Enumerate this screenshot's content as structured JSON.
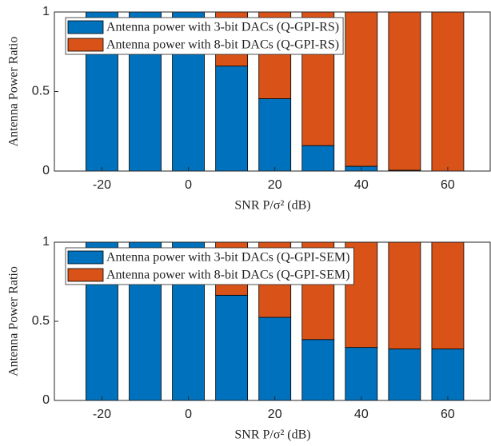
{
  "chart_data": [
    {
      "type": "bar",
      "stacked": true,
      "x": [
        -20,
        -10,
        0,
        10,
        20,
        30,
        40,
        50,
        60
      ],
      "series": [
        {
          "name": "Antenna power with 3-bit DACs (Q-GPI-RS)",
          "color": "#0072bd",
          "values": [
            1,
            1,
            1,
            0.66,
            0.455,
            0.16,
            0.03,
            0.005,
            0
          ]
        },
        {
          "name": "Antenna power with 8-bit DACs (Q-GPI-RS)",
          "color": "#d95319",
          "values": [
            0,
            0,
            0,
            0.34,
            0.545,
            0.84,
            0.97,
            0.995,
            1
          ]
        }
      ],
      "xlim": [
        -31,
        70
      ],
      "xticks": [
        -20,
        0,
        20,
        40,
        60
      ],
      "ylim": [
        0,
        1
      ],
      "yticks": [
        0,
        0.5,
        1
      ],
      "xlabel": "SNR P/σ² (dB)",
      "ylabel": "Antenna Power Ratio",
      "legend": "upper left"
    },
    {
      "type": "bar",
      "stacked": true,
      "x": [
        -20,
        -10,
        0,
        10,
        20,
        30,
        40,
        50,
        60
      ],
      "series": [
        {
          "name": "Antenna power with 3-bit DACs (Q-GPI-SEM)",
          "color": "#0072bd",
          "values": [
            1,
            1,
            1,
            0.665,
            0.525,
            0.385,
            0.335,
            0.325,
            0.325
          ]
        },
        {
          "name": "Antenna power with 8-bit DACs (Q-GPI-SEM)",
          "color": "#d95319",
          "values": [
            0,
            0,
            0,
            0.335,
            0.475,
            0.615,
            0.665,
            0.675,
            0.675
          ]
        }
      ],
      "xlim": [
        -31,
        70
      ],
      "xticks": [
        -20,
        0,
        20,
        40,
        60
      ],
      "ylim": [
        0,
        1
      ],
      "yticks": [
        0,
        0.5,
        1
      ],
      "xlabel": "SNR P/σ² (dB)",
      "ylabel": "Antenna Power Ratio",
      "legend": "upper left"
    }
  ]
}
